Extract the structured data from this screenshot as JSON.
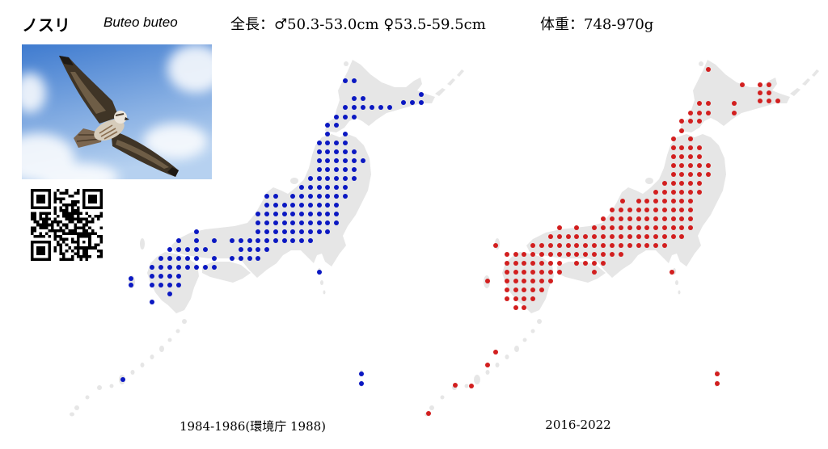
{
  "header": {
    "common_name": "ノスリ",
    "scientific_name": "Buteo buteo",
    "total_length": "全長：♂50.3-53.0cm ♀53.5-59.5cm",
    "body_weight": "体重：748-970g"
  },
  "photo": {
    "icon": "flying-hawk-photo"
  },
  "qr_code": {
    "icon": "qr-code-icon"
  },
  "maps": [
    {
      "period_label": "1984-1986(環境庁 1988)",
      "dot_color": "#0b18c2"
    },
    {
      "period_label": "2016-2022",
      "dot_color": "#d21f1f"
    }
  ],
  "colors": {
    "land": "#e6e6e6",
    "sky_top": "#3f7bcf",
    "sky_bottom": "#b6d1f0"
  }
}
